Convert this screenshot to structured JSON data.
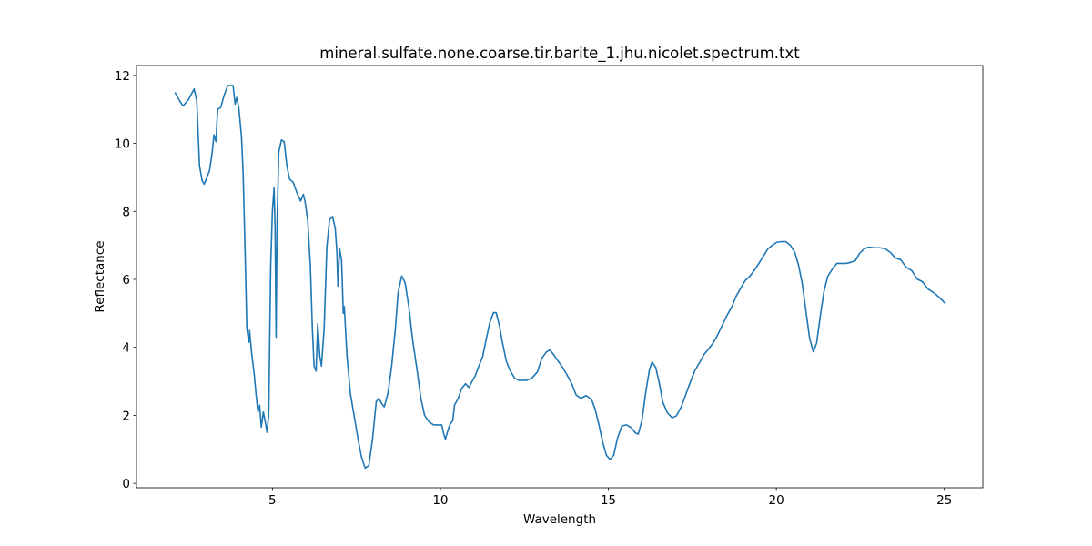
{
  "chart_data": {
    "type": "line",
    "title": "mineral.sulfate.none.coarse.tir.barite_1.jhu.nicolet.spectrum.txt",
    "x_label": "Wavelength",
    "y_label": "Reflectance",
    "xlim": [
      0.955,
      26.145
    ],
    "ylim": [
      -0.13,
      12.29
    ],
    "xticks": [
      5,
      10,
      15,
      20,
      25
    ],
    "yticks": [
      0,
      2,
      4,
      6,
      8,
      10,
      12
    ],
    "grid": false,
    "x": [
      2.1,
      2.24,
      2.34,
      2.51,
      2.67,
      2.75,
      2.83,
      2.91,
      2.97,
      3.13,
      3.21,
      3.26,
      3.32,
      3.37,
      3.46,
      3.56,
      3.67,
      3.83,
      3.89,
      3.94,
      4.0,
      4.08,
      4.13,
      4.19,
      4.24,
      4.3,
      4.32,
      4.38,
      4.46,
      4.51,
      4.57,
      4.62,
      4.67,
      4.73,
      4.78,
      4.84,
      4.89,
      4.95,
      5.0,
      5.05,
      5.08,
      5.11,
      5.14,
      5.19,
      5.27,
      5.35,
      5.43,
      5.51,
      5.62,
      5.73,
      5.84,
      5.92,
      5.97,
      6.05,
      6.13,
      6.19,
      6.24,
      6.3,
      6.35,
      6.41,
      6.46,
      6.54,
      6.62,
      6.7,
      6.79,
      6.87,
      6.92,
      6.95,
      7.0,
      7.06,
      7.11,
      7.14,
      7.22,
      7.32,
      7.43,
      7.55,
      7.65,
      7.76,
      7.87,
      7.98,
      8.09,
      8.17,
      8.25,
      8.33,
      8.44,
      8.55,
      8.66,
      8.74,
      8.85,
      8.95,
      9.06,
      9.17,
      9.31,
      9.42,
      9.53,
      9.67,
      9.8,
      9.96,
      10.04,
      10.1,
      10.15,
      10.2,
      10.28,
      10.37,
      10.42,
      10.53,
      10.64,
      10.75,
      10.85,
      10.96,
      11.04,
      11.15,
      11.26,
      11.37,
      11.47,
      11.58,
      11.66,
      11.75,
      11.85,
      11.96,
      12.07,
      12.21,
      12.34,
      12.56,
      12.72,
      12.89,
      13.02,
      13.16,
      13.26,
      13.37,
      13.5,
      13.64,
      13.77,
      13.91,
      14.04,
      14.18,
      14.34,
      14.5,
      14.61,
      14.72,
      14.84,
      14.94,
      15.05,
      15.16,
      15.27,
      15.4,
      15.54,
      15.68,
      15.81,
      15.89,
      16.0,
      16.11,
      16.22,
      16.3,
      16.41,
      16.52,
      16.62,
      16.76,
      16.9,
      17.03,
      17.17,
      17.3,
      17.44,
      17.58,
      17.71,
      17.85,
      17.98,
      18.12,
      18.26,
      18.4,
      18.53,
      18.67,
      18.8,
      18.94,
      19.07,
      19.21,
      19.34,
      19.48,
      19.61,
      19.75,
      19.88,
      20.01,
      20.15,
      20.28,
      20.42,
      20.55,
      20.66,
      20.77,
      20.88,
      20.99,
      21.1,
      21.2,
      21.31,
      21.42,
      21.53,
      21.67,
      21.8,
      21.94,
      22.08,
      22.21,
      22.35,
      22.48,
      22.62,
      22.75,
      22.91,
      23.08,
      23.24,
      23.4,
      23.54,
      23.7,
      23.86,
      24.03,
      24.19,
      24.35,
      24.51,
      24.68,
      24.84,
      25.03
    ],
    "series": [
      {
        "name": "Reflectance",
        "color": "#1f77b4",
        "values": [
          11.5,
          11.25,
          11.1,
          11.3,
          11.6,
          11.25,
          9.35,
          8.9,
          8.8,
          9.2,
          9.75,
          10.25,
          10.05,
          11.0,
          11.05,
          11.4,
          11.7,
          11.7,
          11.15,
          11.35,
          11.05,
          10.2,
          9.1,
          6.7,
          4.55,
          4.15,
          4.5,
          3.85,
          3.2,
          2.65,
          2.1,
          2.3,
          1.65,
          2.1,
          1.85,
          1.5,
          2.0,
          6.4,
          8.0,
          8.7,
          7.5,
          4.3,
          7.75,
          9.75,
          10.1,
          10.05,
          9.35,
          8.95,
          8.85,
          8.55,
          8.3,
          8.5,
          8.3,
          7.75,
          6.4,
          4.55,
          3.45,
          3.3,
          4.7,
          3.75,
          3.45,
          4.55,
          6.95,
          7.75,
          7.85,
          7.5,
          6.8,
          5.8,
          6.9,
          6.55,
          5.0,
          5.2,
          3.75,
          2.65,
          2.0,
          1.3,
          0.78,
          0.45,
          0.52,
          1.3,
          2.4,
          2.5,
          2.35,
          2.25,
          2.65,
          3.45,
          4.55,
          5.6,
          6.1,
          5.9,
          5.2,
          4.25,
          3.3,
          2.5,
          2.0,
          1.8,
          1.72,
          1.72,
          1.72,
          1.45,
          1.3,
          1.48,
          1.72,
          1.85,
          2.3,
          2.5,
          2.8,
          2.93,
          2.82,
          3.03,
          3.17,
          3.46,
          3.73,
          4.27,
          4.72,
          5.02,
          5.02,
          4.67,
          4.13,
          3.6,
          3.33,
          3.09,
          3.03,
          3.03,
          3.09,
          3.28,
          3.68,
          3.87,
          3.92,
          3.79,
          3.6,
          3.41,
          3.19,
          2.93,
          2.6,
          2.5,
          2.58,
          2.47,
          2.17,
          1.72,
          1.18,
          0.83,
          0.7,
          0.83,
          1.32,
          1.69,
          1.72,
          1.64,
          1.48,
          1.45,
          1.85,
          2.66,
          3.33,
          3.57,
          3.41,
          2.93,
          2.39,
          2.07,
          1.93,
          1.99,
          2.25,
          2.6,
          2.98,
          3.33,
          3.54,
          3.79,
          3.95,
          4.13,
          4.38,
          4.67,
          4.94,
          5.18,
          5.5,
          5.74,
          5.96,
          6.09,
          6.26,
          6.47,
          6.68,
          6.9,
          7.0,
          7.09,
          7.11,
          7.11,
          7.0,
          6.79,
          6.42,
          5.88,
          5.07,
          4.27,
          3.87,
          4.13,
          4.94,
          5.66,
          6.09,
          6.31,
          6.47,
          6.47,
          6.47,
          6.5,
          6.55,
          6.77,
          6.9,
          6.95,
          6.93,
          6.93,
          6.9,
          6.79,
          6.63,
          6.58,
          6.36,
          6.26,
          6.01,
          5.93,
          5.72,
          5.61,
          5.48,
          5.29
        ]
      }
    ]
  }
}
